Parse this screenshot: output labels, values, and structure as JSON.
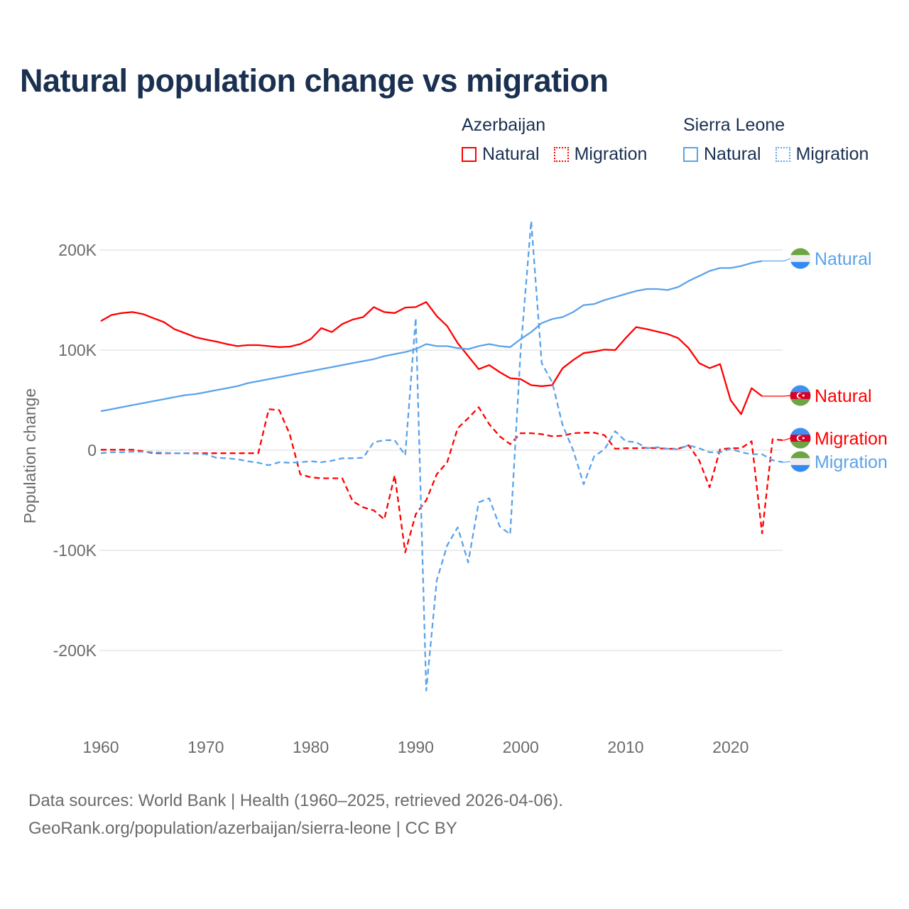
{
  "title": "Natural population change vs migration",
  "legend": {
    "groups": [
      {
        "name": "Azerbaijan",
        "items": [
          {
            "label": "Natural",
            "style": "solid"
          },
          {
            "label": "Migration",
            "style": "dotted"
          }
        ],
        "color": "#ff0000"
      },
      {
        "name": "Sierra Leone",
        "items": [
          {
            "label": "Natural",
            "style": "solid"
          },
          {
            "label": "Migration",
            "style": "dotted"
          }
        ],
        "color": "#5ba3ea"
      }
    ]
  },
  "footer": {
    "line1": "Data sources: World Bank | Health (1960–2025, retrieved 2026-04-06).",
    "line2": "GeoRank.org/population/azerbaijan/sierra-leone | CC BY"
  },
  "chart_data": {
    "type": "line",
    "title": "Natural population change vs migration",
    "xlabel": "",
    "ylabel": "Population change",
    "xlim": [
      1960,
      2025
    ],
    "ylim": [
      -250000,
      235000
    ],
    "x_ticks": [
      1960,
      1970,
      1980,
      1990,
      2000,
      2010,
      2020
    ],
    "x_tick_labels": [
      "1960",
      "1970",
      "1980",
      "1990",
      "2000",
      "2010",
      "2020"
    ],
    "y_ticks": [
      200000,
      100000,
      0,
      -100000,
      -200000
    ],
    "y_tick_labels": [
      "200K",
      "100K",
      "0",
      "-100K",
      "-200K"
    ],
    "grid": true,
    "legend_placement": "top-right",
    "x_start": 1960,
    "series": [
      {
        "name": "Azerbaijan Natural",
        "country": "Azerbaijan",
        "kind": "Natural",
        "end_label": "Natural",
        "color": "#ff0000",
        "dash": false,
        "flag": "azerbaijan",
        "values_k": [
          129,
          135,
          137,
          138,
          136,
          132,
          128,
          121,
          117,
          113,
          110.6,
          108.5,
          106,
          104,
          105,
          105,
          104,
          103,
          103.5,
          106,
          111,
          122,
          118,
          126,
          130.5,
          133,
          143,
          138,
          137,
          142.5,
          143,
          148,
          134,
          124,
          107,
          94,
          81,
          85,
          78,
          72,
          71,
          65,
          64,
          65,
          82,
          90,
          97,
          98.5,
          100.5,
          100,
          112,
          123,
          121,
          118.5,
          116,
          112,
          102,
          87,
          82,
          86,
          50,
          36,
          62,
          54,
          null,
          null
        ]
      },
      {
        "name": "Azerbaijan Migration",
        "country": "Azerbaijan",
        "kind": "Migration",
        "end_label": "Migration",
        "color": "#ff0000",
        "dash": true,
        "flag": "azerbaijan",
        "values_k": [
          0.5,
          0.5,
          0.5,
          0.5,
          -1,
          -3,
          -3,
          -3,
          -3,
          -3,
          -3,
          -3,
          -3,
          -3,
          -3,
          -3,
          41,
          40,
          16,
          -24,
          -27,
          -28,
          -28,
          -28,
          -51,
          -57,
          -60,
          -69,
          -25,
          -102,
          -64,
          -50,
          -24,
          -12,
          22,
          32,
          43,
          26,
          14,
          6,
          17,
          17,
          16,
          14,
          14.5,
          17,
          17.5,
          17.5,
          15,
          1.5,
          2,
          2,
          2.5,
          2,
          1.5,
          1.5,
          5,
          -10,
          -37,
          1,
          2,
          2,
          9,
          -83,
          11,
          10
        ]
      },
      {
        "name": "Sierra Leone Natural",
        "country": "Sierra Leone",
        "kind": "Natural",
        "end_label": "Natural",
        "color": "#5ba3ea",
        "dash": false,
        "flag": "sierra-leone",
        "values_k": [
          39,
          41,
          43,
          45,
          47,
          49,
          51,
          53,
          55,
          56,
          58,
          60,
          62,
          64,
          67,
          69,
          71,
          73,
          75,
          77,
          79,
          81,
          83,
          85,
          87,
          89,
          91,
          94,
          96,
          98,
          101,
          106,
          104,
          104,
          102,
          101,
          104,
          106,
          104,
          103,
          111,
          118,
          127,
          131,
          133,
          138,
          145,
          146,
          150,
          153,
          156,
          159,
          161,
          161,
          160,
          163,
          169,
          174,
          179,
          182,
          182,
          184,
          187,
          189,
          null,
          null
        ]
      },
      {
        "name": "Sierra Leone Migration",
        "country": "Sierra Leone",
        "kind": "Migration",
        "end_label": "Migration",
        "color": "#5ba3ea",
        "dash": true,
        "flag": "sierra-leone",
        "values_k": [
          -3,
          -2,
          -2,
          -1.5,
          -1.5,
          -2,
          -2.5,
          -3,
          -3,
          -3.5,
          -4,
          -7.5,
          -8,
          -9,
          -11,
          -12.5,
          -15,
          -12,
          -12.5,
          -12,
          -11,
          -12,
          -10.5,
          -8,
          -8,
          -7.5,
          8,
          10,
          10,
          -5,
          132,
          -240,
          -130,
          -95,
          -77,
          -112,
          -52,
          -48,
          -76,
          -84,
          100,
          229,
          87,
          68,
          25,
          0,
          -34,
          -6,
          1,
          19,
          9,
          8,
          2,
          3,
          1.5,
          1,
          5,
          2,
          -2,
          -2,
          1.5,
          -2,
          -4,
          -4,
          -10,
          -12
        ]
      }
    ]
  }
}
